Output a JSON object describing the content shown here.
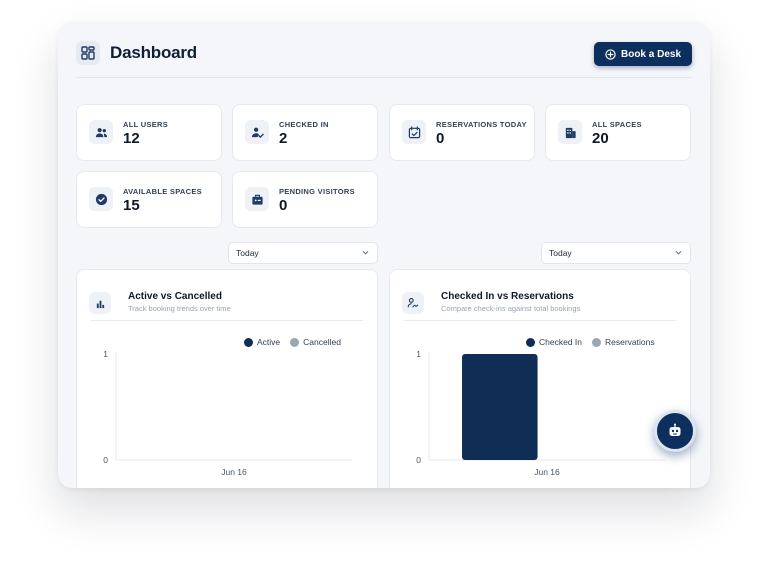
{
  "header": {
    "title": "Dashboard",
    "logo_icon": "dashboard-grid-icon",
    "book_button": {
      "label": "Book a Desk",
      "icon": "plus-circle-icon"
    }
  },
  "stats": [
    {
      "label": "ALL USERS",
      "value": "12",
      "icon": "users-icon"
    },
    {
      "label": "CHECKED IN",
      "value": "2",
      "icon": "user-check-icon"
    },
    {
      "label": "RESERVATIONS TODAY",
      "value": "0",
      "icon": "calendar-check-icon"
    },
    {
      "label": "ALL SPACES",
      "value": "20",
      "icon": "building-icon"
    },
    {
      "label": "AVAILABLE SPACES",
      "value": "15",
      "icon": "check-circle-icon"
    },
    {
      "label": "PENDING VISITORS",
      "value": "0",
      "icon": "briefcase-icon"
    }
  ],
  "filters": [
    {
      "selected": "Today"
    },
    {
      "selected": "Today"
    }
  ],
  "colors": {
    "primary": "#0c2f5e",
    "series_dark": "#0f2d55",
    "series_light": "#9aa5b5"
  },
  "fab": {
    "icon": "robot-icon"
  },
  "chart_data": [
    {
      "type": "bar",
      "title": "Active vs Cancelled",
      "subtitle": "Track booking trends over time",
      "categories": [
        "Jun 16"
      ],
      "series": [
        {
          "name": "Active",
          "values": [
            0
          ]
        },
        {
          "name": "Cancelled",
          "values": [
            0
          ]
        }
      ],
      "ylim": [
        0,
        1
      ],
      "yticks": [
        "0",
        "1"
      ],
      "legend": "top-right",
      "grid": false
    },
    {
      "type": "bar",
      "title": "Checked In vs Reservations",
      "subtitle": "Compare check-ins against total bookings",
      "categories": [
        "Jun 16"
      ],
      "series": [
        {
          "name": "Checked In",
          "values": [
            1
          ]
        },
        {
          "name": "Reservations",
          "values": [
            0
          ]
        }
      ],
      "ylim": [
        0,
        1
      ],
      "yticks": [
        "0",
        "1"
      ],
      "legend": "top-right",
      "grid": false
    }
  ]
}
